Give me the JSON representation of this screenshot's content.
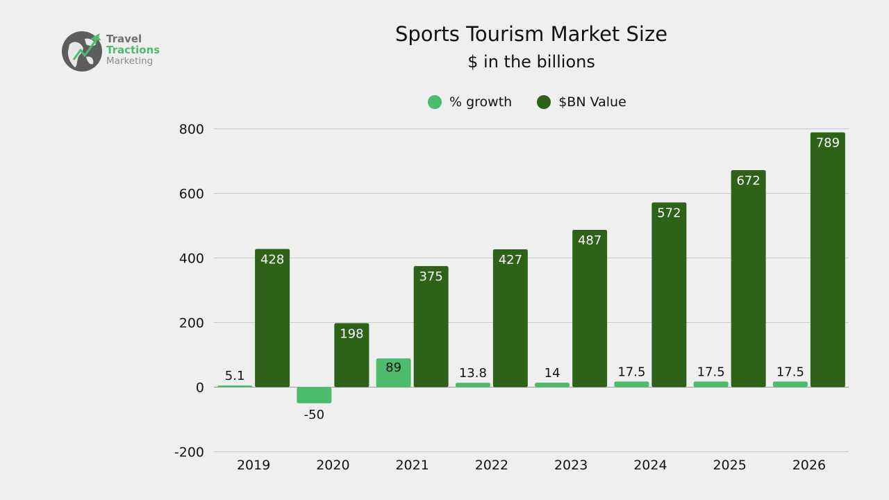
{
  "logo": {
    "line1": "Travel",
    "line2": "Tractions",
    "line3": "Marketing",
    "icon": "globe-plane-icon",
    "colors": {
      "globe": "#5d5d5d",
      "accent": "#4cbb6c"
    }
  },
  "chart_data": {
    "type": "bar",
    "title": "Sports Tourism Market Size",
    "subtitle": "$ in the billions",
    "xlabel": "",
    "ylabel": "",
    "categories": [
      "2019",
      "2020",
      "2021",
      "2022",
      "2023",
      "2024",
      "2025",
      "2026"
    ],
    "series": [
      {
        "name": "% growth",
        "values": [
          5.1,
          -50,
          89,
          13.8,
          14,
          17.5,
          17.5,
          17.5
        ],
        "color": "#4cbb6c",
        "labels": [
          "5.1",
          "-50",
          "89",
          "13.8",
          "14",
          "17.5",
          "17.5",
          "17.5"
        ]
      },
      {
        "name": "$BN Value",
        "values": [
          428,
          198,
          375,
          427,
          487,
          572,
          672,
          789
        ],
        "color": "#2e6218",
        "labels": [
          "428",
          "198",
          "375",
          "427",
          "487",
          "572",
          "672",
          "789"
        ]
      }
    ],
    "ylim": [
      -200,
      800
    ],
    "yticks": [
      -200,
      0,
      200,
      400,
      600,
      800
    ],
    "ytick_labels": [
      "-200",
      "0",
      "200",
      "400",
      "600",
      "800"
    ],
    "grid": true,
    "legend_position": "top-center"
  }
}
